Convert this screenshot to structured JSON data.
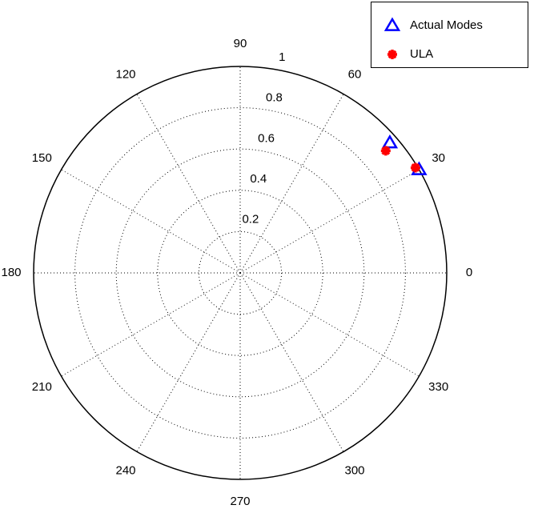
{
  "chart_data": {
    "type": "polar",
    "theta_unit": "degrees",
    "thetaticks": [
      0,
      30,
      60,
      90,
      120,
      150,
      180,
      210,
      240,
      270,
      300,
      330
    ],
    "rlim": [
      0,
      1
    ],
    "rticks": [
      0.2,
      0.4,
      0.6,
      0.8,
      1
    ],
    "grid": true,
    "legend": "upper right",
    "series": [
      {
        "name": "Actual Modes",
        "color": "#0000ff",
        "marker": "triangle",
        "theta": [
          41,
          30
        ],
        "values": [
          0.96,
          1.0
        ]
      },
      {
        "name": "ULA",
        "color": "#ff0000",
        "marker": "asterisk",
        "theta": [
          40,
          31
        ],
        "values": [
          0.92,
          0.99
        ]
      }
    ]
  }
}
